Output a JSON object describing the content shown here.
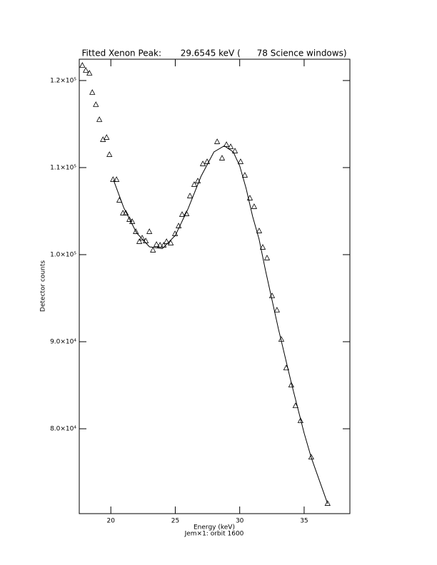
{
  "chart_data": {
    "type": "scatter",
    "title": "Fitted Xenon Peak:       29.6545 keV (      78 Science windows)",
    "x_label": "Energy (keV)",
    "subtitle": "Jem×1: orbit 1600",
    "y_label": "Detector counts",
    "xlim": [
      17.55,
      38.55
    ],
    "ylim": [
      70250,
      122450
    ],
    "xticks": [
      20,
      25,
      30,
      35
    ],
    "yticks": [
      {
        "value": 80000,
        "label": "8.0×10⁴"
      },
      {
        "value": 90000,
        "label": "9.0×10⁴"
      },
      {
        "value": 100000,
        "label": "1.0×10⁵"
      },
      {
        "value": 110000,
        "label": "1.1×10⁵"
      },
      {
        "value": 120000,
        "label": "1.2×10⁵"
      }
    ],
    "series": [
      {
        "name": "Data",
        "marker": "triangle",
        "color": "#000000",
        "x": [
          17.79,
          18.06,
          18.34,
          18.56,
          18.84,
          19.11,
          19.39,
          19.67,
          19.89,
          20.17,
          20.44,
          20.66,
          20.94,
          21.16,
          21.44,
          21.66,
          21.94,
          22.21,
          22.43,
          22.71,
          22.99,
          23.27,
          23.54,
          23.82,
          24.1,
          24.32,
          24.65,
          24.98,
          25.26,
          25.53,
          25.87,
          26.14,
          26.47,
          26.75,
          27.14,
          27.47,
          28.25,
          28.63,
          28.97,
          29.3,
          29.63,
          30.07,
          30.4,
          30.79,
          31.12,
          31.51,
          31.79,
          32.12,
          32.51,
          32.89,
          33.23,
          33.61,
          34.0,
          34.33,
          34.72,
          35.55,
          36.82
        ],
        "values": [
          121721,
          121148,
          120820,
          118607,
          117213,
          115492,
          113197,
          113443,
          111475,
          108607,
          108607,
          106230,
          104754,
          104754,
          104016,
          103770,
          102623,
          101475,
          101885,
          101557,
          102623,
          100492,
          101148,
          101066,
          101066,
          101475,
          101311,
          102377,
          103279,
          104590,
          104672,
          106721,
          108033,
          108443,
          110410,
          110656,
          112951,
          111066,
          112623,
          112377,
          111885,
          110656,
          109098,
          106475,
          105492,
          102705,
          100820,
          99590,
          95246,
          93607,
          90246,
          86967,
          85000,
          82623,
          80902,
          76721,
          71393
        ]
      },
      {
        "name": "Fit",
        "line": true,
        "color": "#000000",
        "x": [
          20.2,
          21,
          22,
          23,
          24,
          25,
          26,
          27,
          28,
          28.8,
          29.5,
          30,
          30.5,
          31,
          31.5,
          32,
          33,
          34,
          35,
          35.55,
          36.82
        ],
        "values": [
          108600,
          105400,
          102500,
          100900,
          100700,
          102200,
          105300,
          109000,
          111800,
          112500,
          111800,
          110200,
          107600,
          104400,
          101800,
          98200,
          91500,
          85300,
          79500,
          76700,
          71400
        ]
      }
    ]
  }
}
